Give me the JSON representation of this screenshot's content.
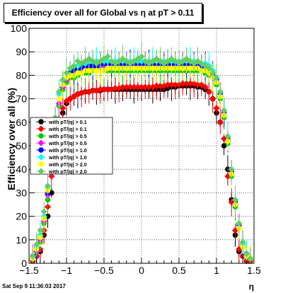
{
  "header": {
    "title": "Efficiency over all for Global vs   η at pT > 0.11",
    "timestamp": "Sat Sep  9 11:36:03 2017"
  },
  "chart_data": {
    "type": "scatter",
    "title": "Efficiency over all for Global vs   η at pT > 0.11",
    "xlabel": "η",
    "ylabel": "Efficiency over all (%)",
    "xlim": [
      -1.5,
      1.5
    ],
    "ylim": [
      0,
      100
    ],
    "x_ticks": [
      "−1.5",
      "−1",
      "−0.5",
      "0",
      "0.5",
      "1",
      "1.5"
    ],
    "y_ticks": [
      "0",
      "10",
      "20",
      "30",
      "40",
      "50",
      "60",
      "70",
      "80",
      "90",
      "100"
    ],
    "grid": true,
    "legend_position": "center-left",
    "x": [
      -1.45,
      -1.4,
      -1.35,
      -1.3,
      -1.25,
      -1.2,
      -1.15,
      -1.1,
      -1.05,
      -1.0,
      -0.95,
      -0.9,
      -0.85,
      -0.8,
      -0.75,
      -0.7,
      -0.65,
      -0.6,
      -0.55,
      -0.5,
      -0.45,
      -0.4,
      -0.35,
      -0.3,
      -0.25,
      -0.2,
      -0.15,
      -0.1,
      -0.05,
      0.0,
      0.05,
      0.1,
      0.15,
      0.2,
      0.25,
      0.3,
      0.35,
      0.4,
      0.45,
      0.5,
      0.55,
      0.6,
      0.65,
      0.7,
      0.75,
      0.8,
      0.85,
      0.9,
      0.95,
      1.0,
      1.05,
      1.1,
      1.15,
      1.2,
      1.25,
      1.3,
      1.35,
      1.4,
      1.45
    ],
    "series": [
      {
        "name": "with pT/|q| > 0.1",
        "color": "#000000",
        "marker": "circle",
        "values": [
          1,
          3,
          5,
          12,
          20,
          30,
          46,
          57,
          64,
          68,
          70,
          71,
          72,
          72.5,
          73,
          73,
          73.5,
          73.5,
          73.5,
          74,
          74,
          74,
          74,
          74,
          74,
          74,
          74,
          74,
          74,
          74,
          74,
          74,
          74,
          74,
          74,
          74,
          74.5,
          75,
          75,
          75.5,
          75.5,
          75.5,
          75.5,
          75.5,
          75,
          75,
          74,
          73,
          70,
          64,
          60,
          50,
          40,
          27,
          12,
          5,
          3,
          1,
          1
        ]
      },
      {
        "name": "with pT/|q| > 0.1",
        "color": "#ff0000",
        "marker": "diamond",
        "values": [
          1,
          3,
          6,
          14,
          24,
          37,
          50,
          60,
          66,
          69,
          70,
          71,
          72,
          72.5,
          73,
          73,
          73.5,
          73.5,
          74,
          74,
          74,
          74,
          74.5,
          74.5,
          75,
          75,
          75,
          75,
          75,
          75,
          75,
          75,
          75,
          75.5,
          75.5,
          75.5,
          76,
          76,
          76,
          76,
          76.5,
          76.5,
          76.5,
          76.5,
          76,
          76,
          75,
          73,
          70,
          66,
          60,
          53,
          37,
          26,
          14,
          6,
          3,
          1,
          1
        ]
      },
      {
        "name": "with pT/|q| > 0.5",
        "color": "#00cc00",
        "marker": "circle",
        "values": [
          2,
          5,
          9,
          17,
          27,
          39,
          56,
          67,
          74,
          77,
          79,
          79,
          80,
          81,
          81,
          81,
          82,
          82,
          82,
          82,
          82,
          82,
          82,
          82,
          82,
          82,
          82,
          82,
          82,
          82,
          82,
          82,
          82,
          82,
          82,
          82,
          82,
          82,
          82,
          82,
          82,
          82,
          82,
          82,
          82,
          82,
          81,
          80,
          79,
          76,
          70,
          62,
          51,
          37,
          24,
          15,
          7,
          3,
          2
        ]
      },
      {
        "name": "with pT/|q| > 0.5",
        "color": "#ff00ff",
        "marker": "diamond",
        "values": [
          2,
          5,
          10,
          18,
          29,
          41,
          58,
          68,
          75,
          78,
          80,
          81,
          82,
          82,
          83,
          83,
          83,
          83,
          84,
          84,
          84,
          84,
          84,
          84,
          84,
          84,
          84,
          84,
          84,
          84,
          84,
          84,
          84,
          84,
          84,
          84,
          84,
          84,
          84,
          84,
          84,
          84,
          84,
          84,
          84,
          83,
          83,
          82,
          80,
          77,
          71,
          63,
          52,
          38,
          25,
          15,
          7,
          3,
          2
        ]
      },
      {
        "name": "with pT/|q| > 1.0",
        "color": "#0000ff",
        "marker": "circle",
        "values": [
          3,
          6,
          11,
          19,
          30,
          43,
          60,
          70,
          76,
          79,
          81,
          82,
          83,
          83,
          84,
          84,
          84,
          84,
          85,
          85,
          85,
          85,
          85,
          85,
          85,
          85,
          85,
          85,
          85,
          85,
          85,
          85,
          85,
          85,
          85,
          85,
          85,
          85,
          85,
          85,
          85,
          85,
          85,
          85,
          85,
          84,
          84,
          83,
          81,
          78,
          72,
          64,
          53,
          39,
          26,
          16,
          8,
          4,
          2
        ]
      },
      {
        "name": "with pT/|q| > 1.0",
        "color": "#00ffff",
        "marker": "diamond",
        "values": [
          3,
          7,
          12,
          20,
          32,
          45,
          61,
          72,
          78,
          81,
          83,
          84,
          84,
          85,
          85,
          86,
          86,
          86,
          86,
          86,
          86,
          86,
          86,
          86,
          86,
          86,
          86,
          86,
          86,
          86,
          86,
          86,
          86,
          86,
          86,
          86,
          86,
          86,
          86,
          86,
          86,
          86,
          86,
          86,
          86,
          85,
          85,
          84,
          82,
          79,
          73,
          65,
          54,
          40,
          27,
          17,
          8,
          4,
          2
        ]
      },
      {
        "name": "with pT/|q| > 2.0",
        "color": "#ffff00",
        "marker": "circle",
        "values": [
          2,
          6,
          11,
          19,
          31,
          44,
          59,
          70,
          76,
          79,
          80,
          80,
          81,
          81,
          82,
          82,
          82,
          82,
          82,
          82,
          83,
          83,
          83,
          83,
          83,
          83,
          83,
          83,
          83,
          83,
          83,
          83,
          83,
          83,
          83,
          83,
          83,
          83,
          83,
          83,
          83,
          83,
          83,
          83,
          83,
          82,
          82,
          81,
          79,
          77,
          71,
          63,
          52,
          38,
          25,
          15,
          7,
          3,
          2
        ]
      },
      {
        "name": "with pT/|q| > 2.0",
        "color": "#66cc66",
        "marker": "diamond",
        "values": [
          3,
          8,
          14,
          22,
          33,
          46,
          62,
          73,
          78,
          81,
          83,
          84,
          86,
          85,
          86,
          87,
          86,
          85,
          86,
          87,
          88,
          86,
          85,
          86,
          87,
          86,
          85,
          86,
          87,
          88,
          86,
          85,
          86,
          87,
          86,
          85,
          86,
          87,
          86,
          85,
          86,
          87,
          86,
          85,
          86,
          85,
          84,
          83,
          81,
          79,
          73,
          65,
          54,
          40,
          27,
          17,
          9,
          4,
          2
        ]
      }
    ]
  }
}
